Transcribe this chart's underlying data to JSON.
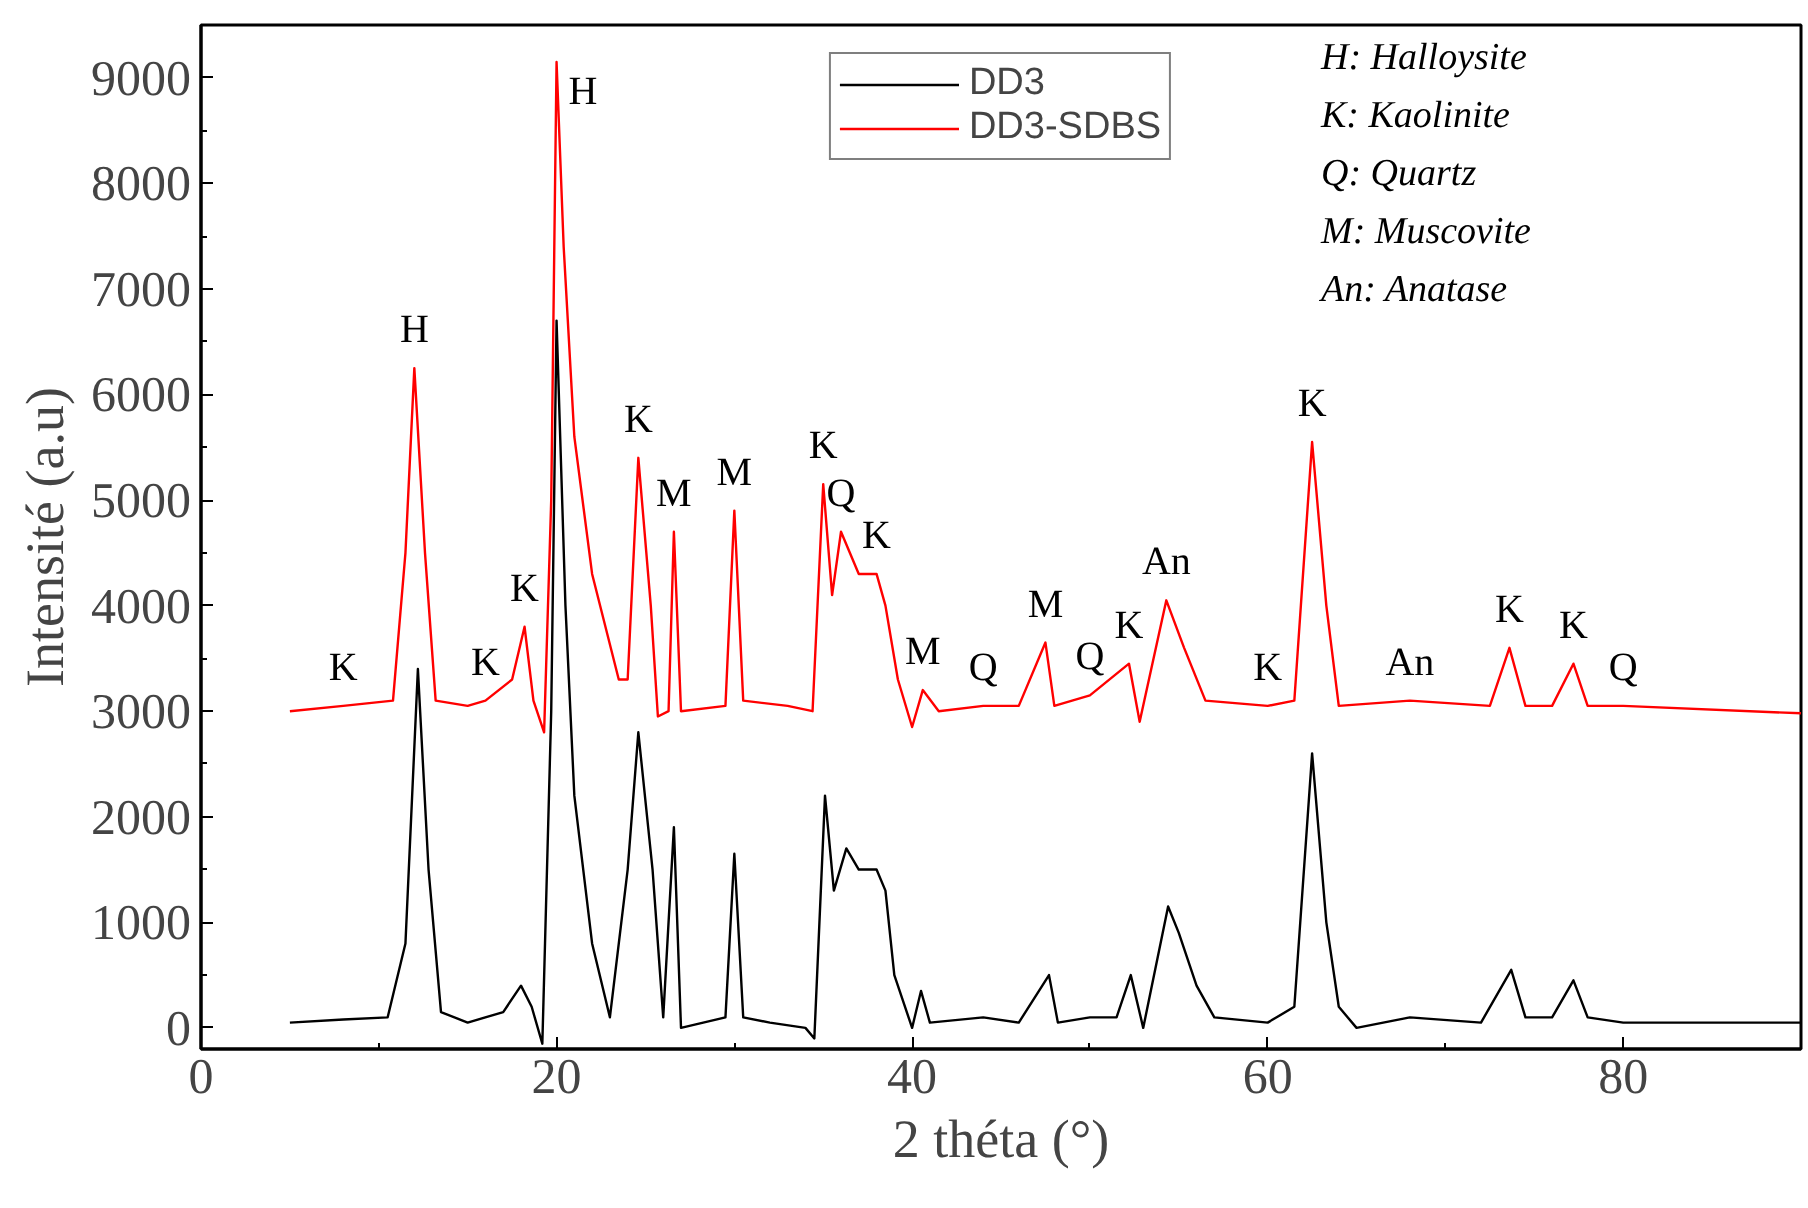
{
  "chart_data": {
    "type": "line",
    "xlabel": "2 théta (°)",
    "ylabel": "Intensité (a.u)",
    "xlim": [
      0,
      90
    ],
    "ylim": [
      -200,
      9500
    ],
    "xticks": [
      0,
      20,
      40,
      60,
      80
    ],
    "yticks": [
      0,
      1000,
      2000,
      3000,
      4000,
      5000,
      6000,
      7000,
      8000,
      9000
    ],
    "grid": false,
    "legend": "top",
    "marker": "none",
    "line_style": "solid",
    "x": [
      5,
      8,
      10.5,
      11.5,
      12.2,
      12.8,
      13.5,
      15,
      17,
      18,
      18.6,
      19.2,
      19.7,
      20.0,
      20.5,
      21,
      22,
      23,
      24,
      24.6,
      25.4,
      26,
      26.6,
      27,
      29.5,
      30,
      30.5,
      32,
      34,
      34.5,
      35.1,
      35.6,
      36.3,
      37,
      38,
      38.5,
      39,
      40,
      40.5,
      41,
      44,
      46,
      47.7,
      48.2,
      50,
      51.5,
      52.3,
      53,
      54.4,
      55,
      56,
      57,
      60,
      61.5,
      62.5,
      63.3,
      64,
      65,
      68,
      72,
      73.7,
      74.5,
      76,
      77.2,
      78,
      80,
      90
    ],
    "series": [
      {
        "name": "DD3",
        "color": "#000000",
        "values": [
          50,
          80,
          100,
          800,
          3400,
          1500,
          150,
          50,
          150,
          400,
          200,
          -150,
          3000,
          6700,
          4000,
          2200,
          800,
          100,
          1500,
          2800,
          1500,
          100,
          1900,
          0,
          100,
          1650,
          100,
          50,
          0,
          -100,
          2200,
          1300,
          1700,
          1500,
          1500,
          1300,
          500,
          0,
          350,
          50,
          100,
          50,
          500,
          50,
          100,
          100,
          500,
          0,
          1150,
          900,
          400,
          100,
          50,
          200,
          2600,
          1000,
          200,
          0,
          100,
          50,
          550,
          100,
          100,
          450,
          100,
          50,
          50
        ]
      },
      {
        "name": "DD3-SDBS",
        "color": "#ff0000",
        "x": [
          5,
          8,
          10.8,
          11.5,
          12,
          12.6,
          13.2,
          15,
          16,
          17.5,
          18.2,
          18.7,
          19.3,
          19.7,
          20,
          20.4,
          21,
          22,
          23.5,
          24,
          24.6,
          25.3,
          25.7,
          26.3,
          26.6,
          27,
          29.5,
          30,
          30.5,
          33,
          34.4,
          35,
          35.5,
          36,
          37,
          38,
          38.5,
          39.2,
          40,
          40.6,
          41.5,
          44,
          46,
          47.5,
          48,
          50,
          52.2,
          52.8,
          54.3,
          55.3,
          56.5,
          60,
          61.5,
          62.5,
          63.3,
          64,
          68,
          72.5,
          73.6,
          74.5,
          76,
          77.2,
          78,
          80,
          90
        ],
        "values": [
          3000,
          3050,
          3100,
          4500,
          6250,
          4500,
          3100,
          3050,
          3100,
          3300,
          3800,
          3100,
          2800,
          5000,
          9150,
          7400,
          5600,
          4300,
          3300,
          3300,
          5400,
          4000,
          2950,
          3000,
          4700,
          3000,
          3050,
          4900,
          3100,
          3050,
          3000,
          5150,
          4100,
          4700,
          4300,
          4300,
          4000,
          3300,
          2850,
          3200,
          3000,
          3050,
          3050,
          3650,
          3050,
          3150,
          3450,
          2900,
          4050,
          3600,
          3100,
          3050,
          3100,
          5550,
          4000,
          3050,
          3100,
          3050,
          3600,
          3050,
          3050,
          3450,
          3050,
          3050,
          2980
        ]
      }
    ],
    "annotations": [
      {
        "text": "H",
        "x": 12,
        "y": 6250
      },
      {
        "text": "H",
        "x": 20,
        "y": 9150
      },
      {
        "text": "K",
        "x": 8,
        "y": 3050
      },
      {
        "text": "K",
        "x": 16,
        "y": 3100
      },
      {
        "text": "K",
        "x": 18.2,
        "y": 3800
      },
      {
        "text": "K",
        "x": 24.6,
        "y": 5400
      },
      {
        "text": "M",
        "x": 26.6,
        "y": 4700
      },
      {
        "text": "M",
        "x": 30,
        "y": 4900
      },
      {
        "text": "K",
        "x": 35,
        "y": 5150
      },
      {
        "text": "Q",
        "x": 36,
        "y": 4700
      },
      {
        "text": "K",
        "x": 38,
        "y": 4300
      },
      {
        "text": "M",
        "x": 40.6,
        "y": 3200
      },
      {
        "text": "Q",
        "x": 44,
        "y": 3050
      },
      {
        "text": "M",
        "x": 47.5,
        "y": 3650
      },
      {
        "text": "Q",
        "x": 50,
        "y": 3150
      },
      {
        "text": "K",
        "x": 52.2,
        "y": 3450
      },
      {
        "text": "An",
        "x": 54.3,
        "y": 4050
      },
      {
        "text": "K",
        "x": 60,
        "y": 3050
      },
      {
        "text": "K",
        "x": 62.5,
        "y": 5550
      },
      {
        "text": "An",
        "x": 68,
        "y": 3100
      },
      {
        "text": "K",
        "x": 73.6,
        "y": 3600
      },
      {
        "text": "K",
        "x": 77.2,
        "y": 3450
      },
      {
        "text": "Q",
        "x": 80,
        "y": 3050
      },
      "H: Halloysite",
      "K: Kaolinite",
      "Q: Quartz",
      "M: Muscovite",
      "An: Anatase"
    ]
  }
}
